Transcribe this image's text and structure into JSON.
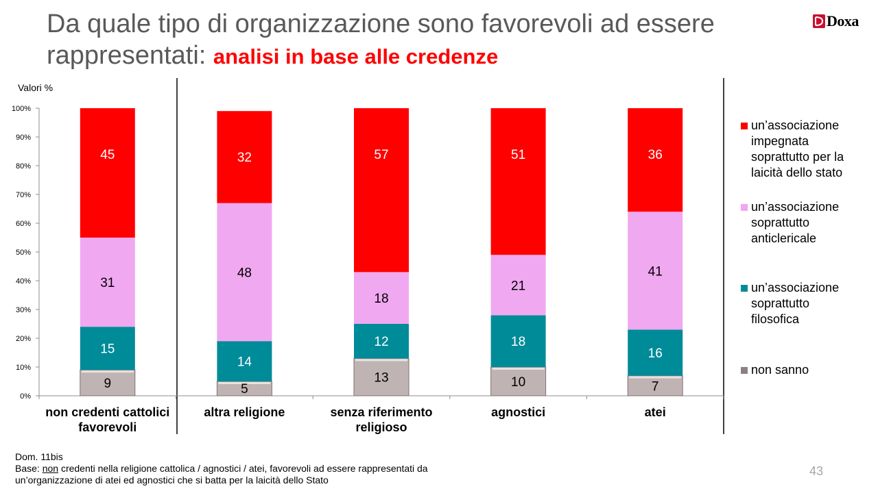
{
  "title": {
    "line1": "Da quale tipo di organizzazione sono favorevoli ad essere",
    "line2_prefix": "rappresentati: ",
    "highlight": "analisi in base alle credenze"
  },
  "logo": {
    "text": "Doxa",
    "color": "#c8102e"
  },
  "values_label": "Valori %",
  "chart_data": {
    "type": "bar",
    "stacked": true,
    "categories": [
      "non credenti cattolici favorevoli",
      "altra religione",
      "senza riferimento religioso",
      "agnostici",
      "atei"
    ],
    "category_lines": [
      [
        "non credenti cattolici",
        "favorevoli"
      ],
      [
        "altra religione"
      ],
      [
        "senza riferimento",
        "religioso"
      ],
      [
        "agnostici"
      ],
      [
        "atei"
      ]
    ],
    "series": [
      {
        "name": "non sanno",
        "color": "#bfb3b3",
        "values": [
          9,
          5,
          13,
          10,
          7
        ]
      },
      {
        "name": "un’associazione soprattutto filosofica",
        "color": "#008b99",
        "values": [
          15,
          14,
          12,
          18,
          16
        ]
      },
      {
        "name": "un’associazione soprattutto anticlericale",
        "color": "#f0a8f0",
        "values": [
          31,
          48,
          18,
          21,
          41
        ]
      },
      {
        "name": "un’associazione impegnata soprattutto per la laicità dello stato",
        "color": "#ff0000",
        "values": [
          45,
          32,
          57,
          51,
          36
        ]
      }
    ],
    "ylim": [
      0,
      100
    ],
    "yticks": [
      "0%",
      "10%",
      "20%",
      "30%",
      "40%",
      "50%",
      "60%",
      "70%",
      "80%",
      "90%",
      "100%"
    ],
    "grid": false,
    "legend_position": "right"
  },
  "legend": [
    {
      "lines": [
        "un’associazione",
        "impegnata",
        "soprattutto per la",
        "laicità dello stato"
      ],
      "color": "#ff0000"
    },
    {
      "lines": [
        "un’associazione",
        "soprattutto",
        "anticlericale"
      ],
      "color": "#f0a8f0"
    },
    {
      "lines": [
        "un’associazione",
        "soprattutto",
        "filosofica"
      ],
      "color": "#008b99"
    },
    {
      "lines": [
        "non sanno"
      ],
      "color": "#8c8080"
    }
  ],
  "footer": {
    "line1": "Dom. 11bis",
    "base_label": "Base: ",
    "base_underlined": "non",
    "line2_rest": " credenti nella religione cattolica / agnostici / atei, favorevoli ad essere rappresentati da",
    "line3": "un’organizzazione di atei ed agnostici che si batta per la laicità dello Stato"
  },
  "page_number": "43"
}
